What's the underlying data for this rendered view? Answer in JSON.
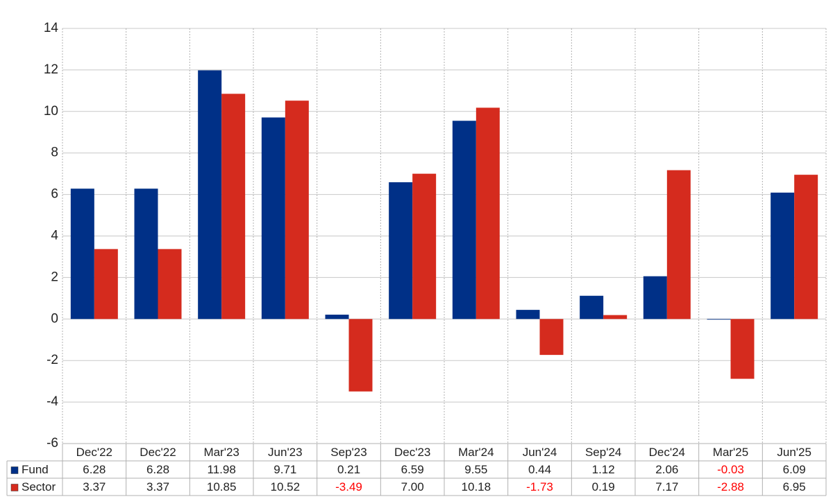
{
  "chart_data": {
    "type": "bar",
    "categories": [
      "Dec'22",
      "Dec'22",
      "Mar'23",
      "Jun'23",
      "Sep'23",
      "Dec'23",
      "Mar'24",
      "Jun'24",
      "Sep'24",
      "Dec'24",
      "Mar'25",
      "Jun'25"
    ],
    "series": [
      {
        "name": "Fund",
        "color": "#003087",
        "values": [
          6.28,
          6.28,
          11.98,
          9.71,
          0.21,
          6.59,
          9.55,
          0.44,
          1.12,
          2.06,
          -0.03,
          6.09
        ],
        "value_labels": [
          "6.28",
          "6.28",
          "11.98",
          "9.71",
          "0.21",
          "6.59",
          "9.55",
          "0.44",
          "1.12",
          "2.06",
          "-0.03",
          "6.09"
        ]
      },
      {
        "name": "Sector",
        "color": "#d52b1e",
        "values": [
          3.37,
          3.37,
          10.85,
          10.52,
          -3.49,
          7.0,
          10.18,
          -1.73,
          0.19,
          7.17,
          -2.88,
          6.95
        ],
        "value_labels": [
          "3.37",
          "3.37",
          "10.85",
          "10.52",
          "-3.49",
          "7.00",
          "10.18",
          "-1.73",
          "0.19",
          "7.17",
          "-2.88",
          "6.95"
        ]
      }
    ],
    "ylim": [
      -6,
      14
    ],
    "yticks": [
      -6,
      -4,
      -2,
      0,
      2,
      4,
      6,
      8,
      10,
      12,
      14
    ],
    "grid": true
  }
}
